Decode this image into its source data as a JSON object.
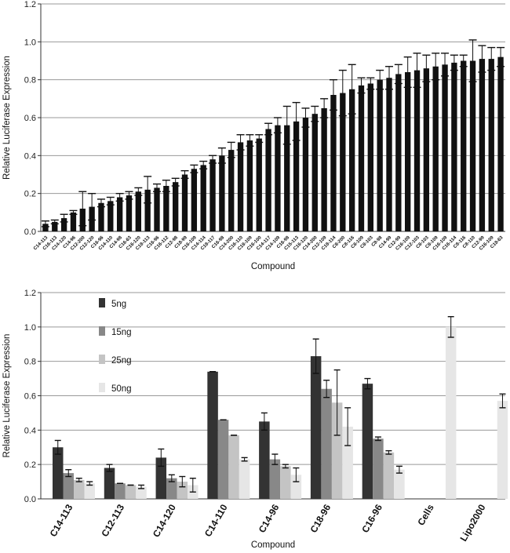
{
  "chart_data": [
    {
      "type": "bar",
      "ylabel": "Relative Luciferase Expression",
      "xlabel": "Compound",
      "ylim": [
        0,
        1.2
      ],
      "yticks": [
        "0.0",
        "0.2",
        "0.4",
        "0.6",
        "0.8",
        "1.0",
        "1.2"
      ],
      "grid": true,
      "categories": [
        "C14-113",
        "C16-113",
        "C14-120",
        "C14-96",
        "C12-200",
        "C12-120",
        "C16-96",
        "C14-110",
        "C14-98",
        "C16-63",
        "C16-120",
        "C18-113",
        "C16-96",
        "C16-112",
        "C12-98",
        "C18-99",
        "C16-109",
        "C14-114",
        "C18-117",
        "C16-98",
        "C14-200",
        "C16-110",
        "C18-109",
        "C16-100",
        "C14-117",
        "C14-109",
        "C16-98",
        "C15-113",
        "C16-120",
        "C14-200",
        "C12-109",
        "C18-114",
        "C8-200",
        "C8-116",
        "C8-109",
        "C8-103",
        "C8-98",
        "C14-99",
        "C12-99",
        "C16-109",
        "C12-103",
        "C8-103",
        "C8-109",
        "C16-109",
        "C16-114",
        "C8-116",
        "C8-110",
        "C12-99",
        "C16-109",
        "C18-63"
      ],
      "values": [
        0.04,
        0.05,
        0.07,
        0.1,
        0.12,
        0.13,
        0.15,
        0.16,
        0.18,
        0.19,
        0.21,
        0.22,
        0.23,
        0.24,
        0.26,
        0.3,
        0.33,
        0.35,
        0.38,
        0.4,
        0.43,
        0.47,
        0.48,
        0.49,
        0.54,
        0.56,
        0.56,
        0.58,
        0.6,
        0.62,
        0.65,
        0.72,
        0.73,
        0.75,
        0.77,
        0.78,
        0.8,
        0.81,
        0.83,
        0.84,
        0.85,
        0.86,
        0.87,
        0.88,
        0.89,
        0.9,
        0.9,
        0.91,
        0.91,
        0.92
      ],
      "errors": [
        0.015,
        0.01,
        0.02,
        0.01,
        0.09,
        0.07,
        0.02,
        0.02,
        0.02,
        0.02,
        0.02,
        0.07,
        0.02,
        0.03,
        0.02,
        0.02,
        0.02,
        0.02,
        0.02,
        0.04,
        0.04,
        0.04,
        0.03,
        0.02,
        0.03,
        0.04,
        0.1,
        0.1,
        0.05,
        0.04,
        0.05,
        0.08,
        0.12,
        0.13,
        0.04,
        0.03,
        0.05,
        0.06,
        0.05,
        0.08,
        0.09,
        0.07,
        0.07,
        0.06,
        0.04,
        0.03,
        0.11,
        0.07,
        0.06,
        0.05
      ]
    },
    {
      "type": "bar",
      "ylabel": "Relative Luciferase Expression",
      "xlabel": "Compound",
      "ylim": [
        0,
        1.2
      ],
      "yticks": [
        "0.0",
        "0.2",
        "0.4",
        "0.6",
        "0.8",
        "1.0",
        "1.2"
      ],
      "grid": true,
      "legend_position": "top-left",
      "categories": [
        "C14-113",
        "C12-113",
        "C14-120",
        "C14-110",
        "C14-96",
        "C18-96",
        "C16-96",
        "Cells",
        "Lipo2000"
      ],
      "series": [
        {
          "name": "5ng",
          "color": "#333333",
          "values": [
            0.3,
            0.18,
            0.24,
            0.74,
            0.45,
            0.83,
            0.67,
            null,
            null
          ],
          "errors": [
            0.04,
            0.02,
            0.05,
            0.0,
            0.05,
            0.1,
            0.03,
            null,
            null
          ]
        },
        {
          "name": "15ng",
          "color": "#888888",
          "values": [
            0.15,
            0.09,
            0.12,
            0.46,
            0.23,
            0.64,
            0.35,
            null,
            null
          ],
          "errors": [
            0.02,
            0.0,
            0.02,
            0.0,
            0.03,
            0.05,
            0.01,
            null,
            null
          ]
        },
        {
          "name": "25ng",
          "color": "#c4c4c4",
          "values": [
            0.11,
            0.08,
            0.1,
            0.37,
            0.19,
            0.56,
            0.27,
            null,
            null
          ],
          "errors": [
            0.01,
            0.0,
            0.03,
            0.0,
            0.01,
            0.19,
            0.01,
            null,
            null
          ]
        },
        {
          "name": "50ng",
          "color": "#e6e6e6",
          "values": [
            0.09,
            0.07,
            0.08,
            0.23,
            0.14,
            0.42,
            0.17,
            1.0,
            0.57
          ],
          "errors": [
            0.01,
            0.01,
            0.04,
            0.01,
            0.04,
            0.11,
            0.02,
            0.06,
            0.04
          ]
        }
      ]
    }
  ]
}
